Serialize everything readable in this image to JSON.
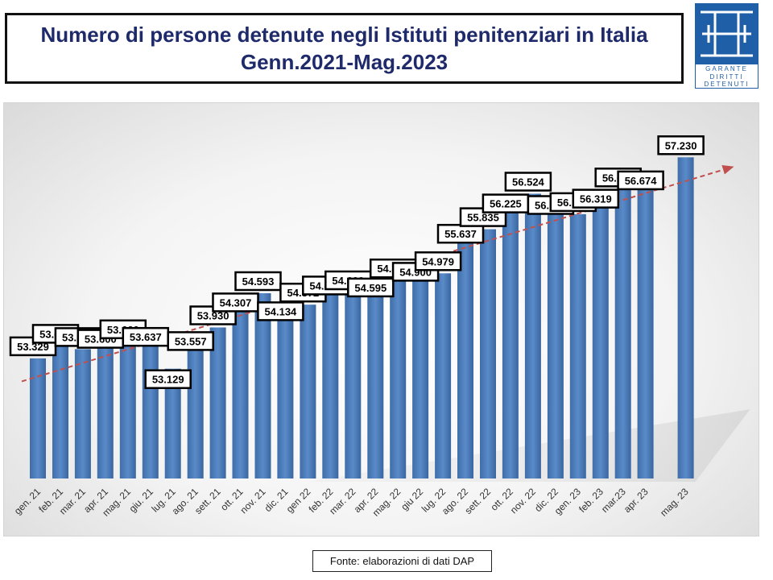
{
  "title": {
    "line1": "Numero di persone detenute negli Istituti penitenziari in Italia",
    "line2": "Genn.2021-Mag.2023"
  },
  "logo": {
    "text_lines": [
      "GARANTE",
      "DIRITTI",
      "DETENUTI"
    ],
    "color": "#1f5fa8"
  },
  "source": "Fonte: elaborazioni di dati DAP",
  "chart_data": {
    "type": "bar",
    "title": "Numero di persone detenute negli Istituti penitenziari in Italia",
    "subtitle": "Genn.2021-Mag.2023",
    "categories": [
      "gen. 21",
      "feb. 21",
      "mar. 21",
      "apr. 21",
      "mag. 21",
      "giu. 21",
      "lug. 21",
      "ago. 21",
      "sett. 21",
      "ott. 21",
      "nov. 21",
      "dic. 21",
      "gen 22",
      "feb. 22",
      "mar. 22",
      "apr. 22",
      "mag. 22",
      "giu 22",
      "lug. 22",
      "ago. 22",
      "sett. 22",
      "ott. 22",
      "nov. 22",
      "dic. 22",
      "gen. 23",
      "feb. 23",
      "mar.23",
      "apr. 23",
      "mag. 23"
    ],
    "values": [
      53329,
      53697,
      53509,
      53600,
      53660,
      53637,
      53129,
      53557,
      53930,
      54307,
      54593,
      54134,
      54372,
      54635,
      54609,
      54595,
      54841,
      54900,
      54979,
      55637,
      55835,
      56225,
      56524,
      56196,
      56127,
      56319,
      56605,
      56674,
      57230
    ],
    "data_labels": [
      "53.329",
      "53.697",
      "53.509",
      "53.600",
      "53.660",
      "53.637",
      "53.129",
      "53.557",
      "53.930",
      "54.307",
      "54.593",
      "54.134",
      "54.372",
      "54.635",
      "54.609",
      "54.595",
      "54.841",
      "54.900",
      "54.979",
      "55.637",
      "55.835",
      "56.225",
      "56.524",
      "56.196",
      "56.127",
      "56.319",
      "56.605",
      "56.674",
      "57.230"
    ],
    "ylim": [
      51000,
      57500
    ],
    "trendline": true,
    "grid": false,
    "bar_color": "#4a7ab8",
    "trend_color": "#c0504d"
  }
}
